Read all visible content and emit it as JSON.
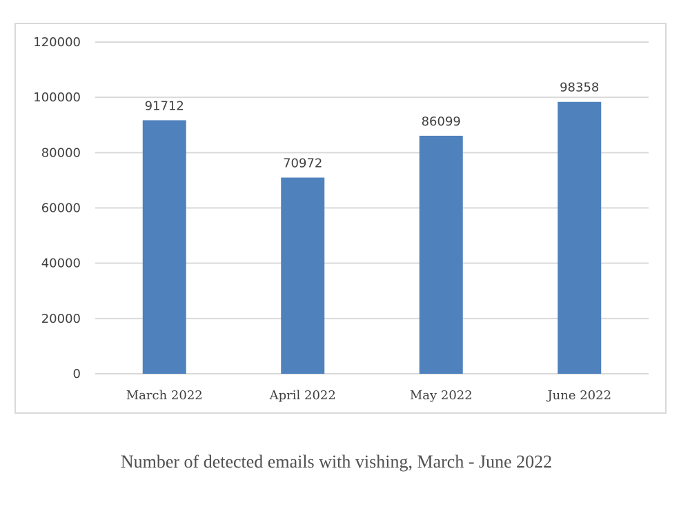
{
  "caption": "Number of detected emails with vishing, March - June 2022",
  "chart_data": {
    "type": "bar",
    "title": "",
    "xlabel": "",
    "ylabel": "",
    "categories": [
      "March 2022",
      "April 2022",
      "May 2022",
      "June 2022"
    ],
    "values": [
      91712,
      70972,
      86099,
      98358
    ],
    "data_labels": [
      "91712",
      "70972",
      "86099",
      "98358"
    ],
    "ylim": [
      0,
      120000
    ],
    "yticks": [
      0,
      20000,
      40000,
      60000,
      80000,
      100000,
      120000
    ],
    "ytick_labels": [
      "0",
      "20000",
      "40000",
      "60000",
      "80000",
      "100000",
      "120000"
    ],
    "grid": true,
    "legend": "none",
    "bar_color": "#4f81bd",
    "grid_color": "#d9d9d9",
    "text_color": "#404040"
  }
}
